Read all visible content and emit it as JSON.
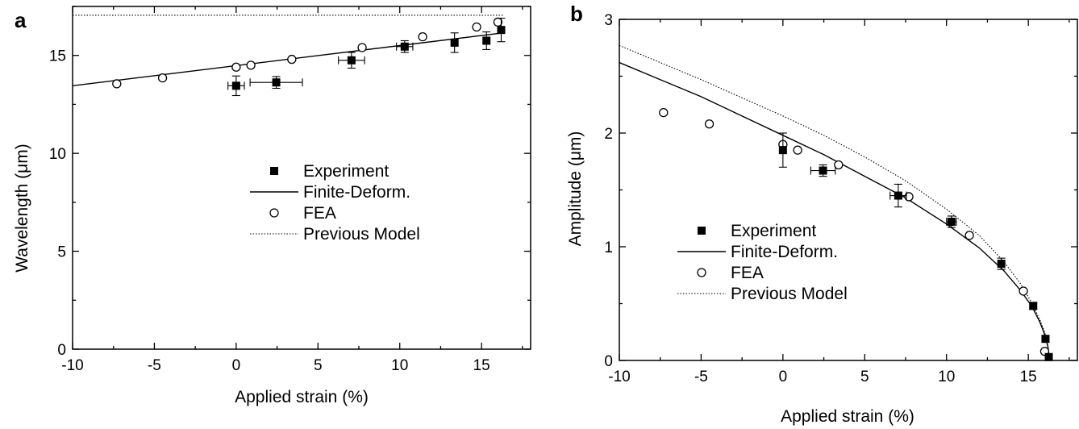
{
  "chart_data": [
    {
      "panel": "a",
      "type": "scatter",
      "xlabel": "Applied strain (%)",
      "ylabel": "Wavelength (μm)",
      "xlim": [
        -10,
        18
      ],
      "ylim": [
        0,
        17.5
      ],
      "xticks": [
        -10,
        -5,
        0,
        5,
        10,
        15
      ],
      "yticks": [
        0,
        5,
        10,
        15
      ],
      "legend_position": "center-right",
      "series": [
        {
          "name": "Experiment",
          "kind": "filled-square",
          "points": [
            {
              "x": 0,
              "y": 13.45,
              "xerr": 0.5,
              "yerr": 0.5
            },
            {
              "x": 2.45,
              "y": 13.62,
              "xerr": 1.6,
              "yerr": 0.3
            },
            {
              "x": 7.05,
              "y": 14.75,
              "xerr": 0.8,
              "yerr": 0.4
            },
            {
              "x": 10.3,
              "y": 15.45,
              "xerr": 0.5,
              "yerr": 0.3
            },
            {
              "x": 13.35,
              "y": 15.65,
              "xerr": 0,
              "yerr": 0.5
            },
            {
              "x": 15.3,
              "y": 15.75,
              "xerr": 0,
              "yerr": 0.45
            },
            {
              "x": 16.2,
              "y": 16.3,
              "xerr": 0,
              "yerr": 0.6
            }
          ]
        },
        {
          "name": "Finite-Deform.",
          "kind": "solid-line",
          "x": [
            -10,
            16.3
          ],
          "y": [
            13.45,
            16.15
          ]
        },
        {
          "name": "FEA",
          "kind": "open-circle",
          "x": [
            -7.3,
            -4.5,
            0,
            0.9,
            3.4,
            7.7,
            11.4,
            14.7,
            16.0
          ],
          "y": [
            13.55,
            13.85,
            14.4,
            14.5,
            14.8,
            15.4,
            15.95,
            16.45,
            16.7
          ]
        },
        {
          "name": "Previous Model",
          "kind": "dotted-line",
          "x": [
            -10,
            16.3
          ],
          "y": [
            17.05,
            17.05
          ]
        }
      ]
    },
    {
      "panel": "b",
      "type": "scatter",
      "xlabel": "Applied strain (%)",
      "ylabel": "Amplitude (μm)",
      "xlim": [
        -10,
        18
      ],
      "ylim": [
        0,
        3
      ],
      "xticks": [
        -10,
        -5,
        0,
        5,
        10,
        15
      ],
      "yticks": [
        0,
        1,
        2,
        3
      ],
      "legend_position": "lower-left",
      "critical_strain": 16.3,
      "series": [
        {
          "name": "Experiment",
          "kind": "filled-square",
          "points": [
            {
              "x": 0,
              "y": 1.85,
              "xerr": 0,
              "yerr": 0.15
            },
            {
              "x": 2.45,
              "y": 1.67,
              "xerr": 0.75,
              "yerr": 0.05
            },
            {
              "x": 7.05,
              "y": 1.45,
              "xerr": 0.5,
              "yerr": 0.1
            },
            {
              "x": 10.3,
              "y": 1.22,
              "xerr": 0.3,
              "yerr": 0.05
            },
            {
              "x": 13.35,
              "y": 0.85,
              "xerr": 0.2,
              "yerr": 0.05
            },
            {
              "x": 15.3,
              "y": 0.48,
              "xerr": 0.2,
              "yerr": 0.03
            },
            {
              "x": 16.05,
              "y": 0.19,
              "xerr": 0,
              "yerr": 0.03
            },
            {
              "x": 16.25,
              "y": 0.03,
              "xerr": 0,
              "yerr": 0.02
            }
          ]
        },
        {
          "name": "Finite-Deform.",
          "kind": "solid-line",
          "x": [
            -10,
            -7.5,
            -5,
            -2.5,
            0,
            2.5,
            5,
            7.5,
            10,
            12,
            13.5,
            14.5,
            15.2,
            15.7,
            16.0,
            16.2,
            16.3
          ],
          "y": [
            2.62,
            2.47,
            2.32,
            2.15,
            1.98,
            1.81,
            1.62,
            1.43,
            1.2,
            0.99,
            0.79,
            0.62,
            0.48,
            0.34,
            0.23,
            0.12,
            0.0
          ]
        },
        {
          "name": "FEA",
          "kind": "open-circle",
          "x": [
            -7.3,
            -4.5,
            0,
            0.9,
            3.4,
            7.7,
            11.4,
            14.7,
            16.0
          ],
          "y": [
            2.18,
            2.08,
            1.9,
            1.85,
            1.72,
            1.44,
            1.1,
            0.61,
            0.08
          ]
        },
        {
          "name": "Previous Model",
          "kind": "dotted-line",
          "x": [
            -10,
            -7.5,
            -5,
            -2.5,
            0,
            2.5,
            5,
            7.5,
            10,
            12,
            13.5,
            14.5,
            15.2,
            15.7,
            16.0,
            16.2,
            16.3
          ],
          "y": [
            2.77,
            2.62,
            2.47,
            2.31,
            2.15,
            1.98,
            1.79,
            1.58,
            1.33,
            1.1,
            0.87,
            0.68,
            0.51,
            0.36,
            0.25,
            0.13,
            0.0
          ]
        }
      ]
    }
  ]
}
